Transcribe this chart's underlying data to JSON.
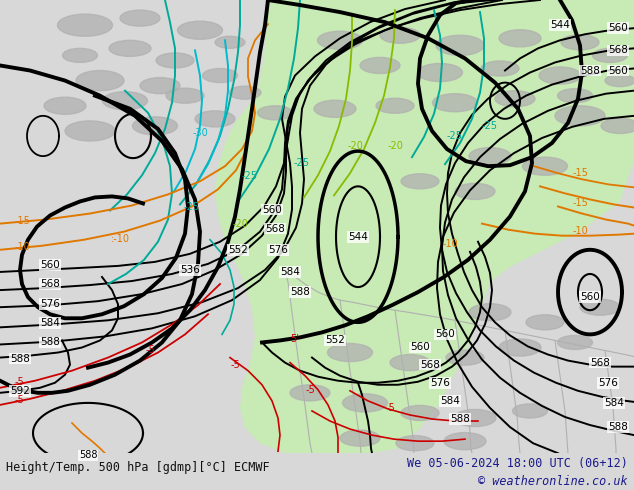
{
  "title_left": "Height/Temp. 500 hPa [gdmp][°C] ECMWF",
  "title_right": "We 05-06-2024 18:00 UTC (06+12)",
  "copyright": "© weatheronline.co.uk",
  "bg_color": "#d8d8d8",
  "green_fill_color": "#c8eab4",
  "land_color": "#b0b0b0",
  "figsize": [
    6.34,
    4.9
  ],
  "dpi": 100,
  "bottom_text_color": "#1a1a8c",
  "bottom_left_color": "#111111",
  "font_size_bottom": 8.5,
  "black_lw": 1.4,
  "bold_lw": 2.8,
  "orange": "#e07800",
  "red": "#cc0000",
  "teal": "#00aa99",
  "lime": "#88bb00",
  "cyan_cold": "#00bbcc"
}
